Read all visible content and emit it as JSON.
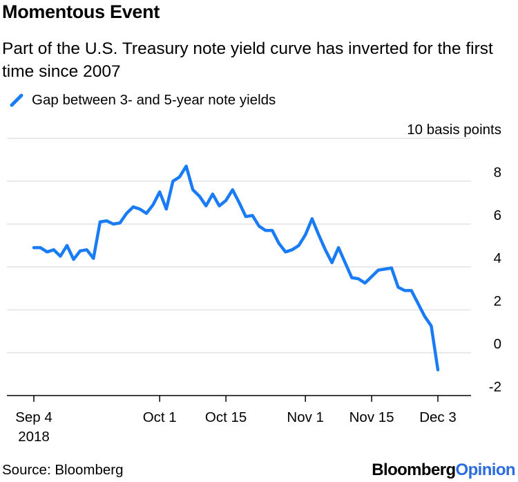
{
  "chart_data": {
    "type": "line",
    "title": "Momentous Event",
    "subtitle": "Part of the U.S. Treasury note yield curve has inverted for the first time since 2007",
    "series": [
      {
        "name": "Gap between 3- and 5-year note yields",
        "color": "#1a7cf5",
        "values": [
          4.9,
          4.9,
          4.7,
          4.8,
          4.5,
          5.0,
          4.35,
          4.75,
          4.8,
          4.4,
          6.1,
          6.15,
          6.0,
          6.05,
          6.5,
          6.8,
          6.7,
          6.5,
          6.9,
          7.5,
          6.7,
          8.0,
          8.2,
          8.7,
          7.6,
          7.3,
          6.85,
          7.4,
          6.85,
          7.1,
          7.6,
          7.0,
          6.35,
          6.4,
          5.9,
          5.7,
          5.7,
          5.1,
          4.7,
          4.8,
          5.0,
          5.5,
          6.25,
          5.5,
          4.8,
          4.2,
          4.9,
          4.2,
          3.5,
          3.45,
          3.25,
          3.55,
          3.85,
          3.9,
          3.95,
          3.05,
          2.9,
          2.9,
          2.3,
          1.7,
          1.25,
          -0.8
        ]
      }
    ],
    "x_ticks": [
      "Sep 4",
      "Oct 1",
      "Oct 15",
      "Nov 1",
      "Nov 15",
      "Dec 3"
    ],
    "x_tick_index": [
      0,
      19,
      29,
      41,
      51,
      61
    ],
    "x_year": "2018",
    "y_ticks": [
      -2,
      0,
      2,
      4,
      6,
      8,
      10
    ],
    "y_tick_labels": [
      "-2",
      "0",
      "2",
      "4",
      "6",
      "8",
      "10 basis points"
    ],
    "ylim": [
      -2,
      10
    ],
    "xlabel": "",
    "ylabel": "basis points",
    "grid": "horizontal"
  },
  "source": "Source: Bloomberg",
  "brand": {
    "part1": "Bloomberg",
    "part2": "Opinion"
  }
}
